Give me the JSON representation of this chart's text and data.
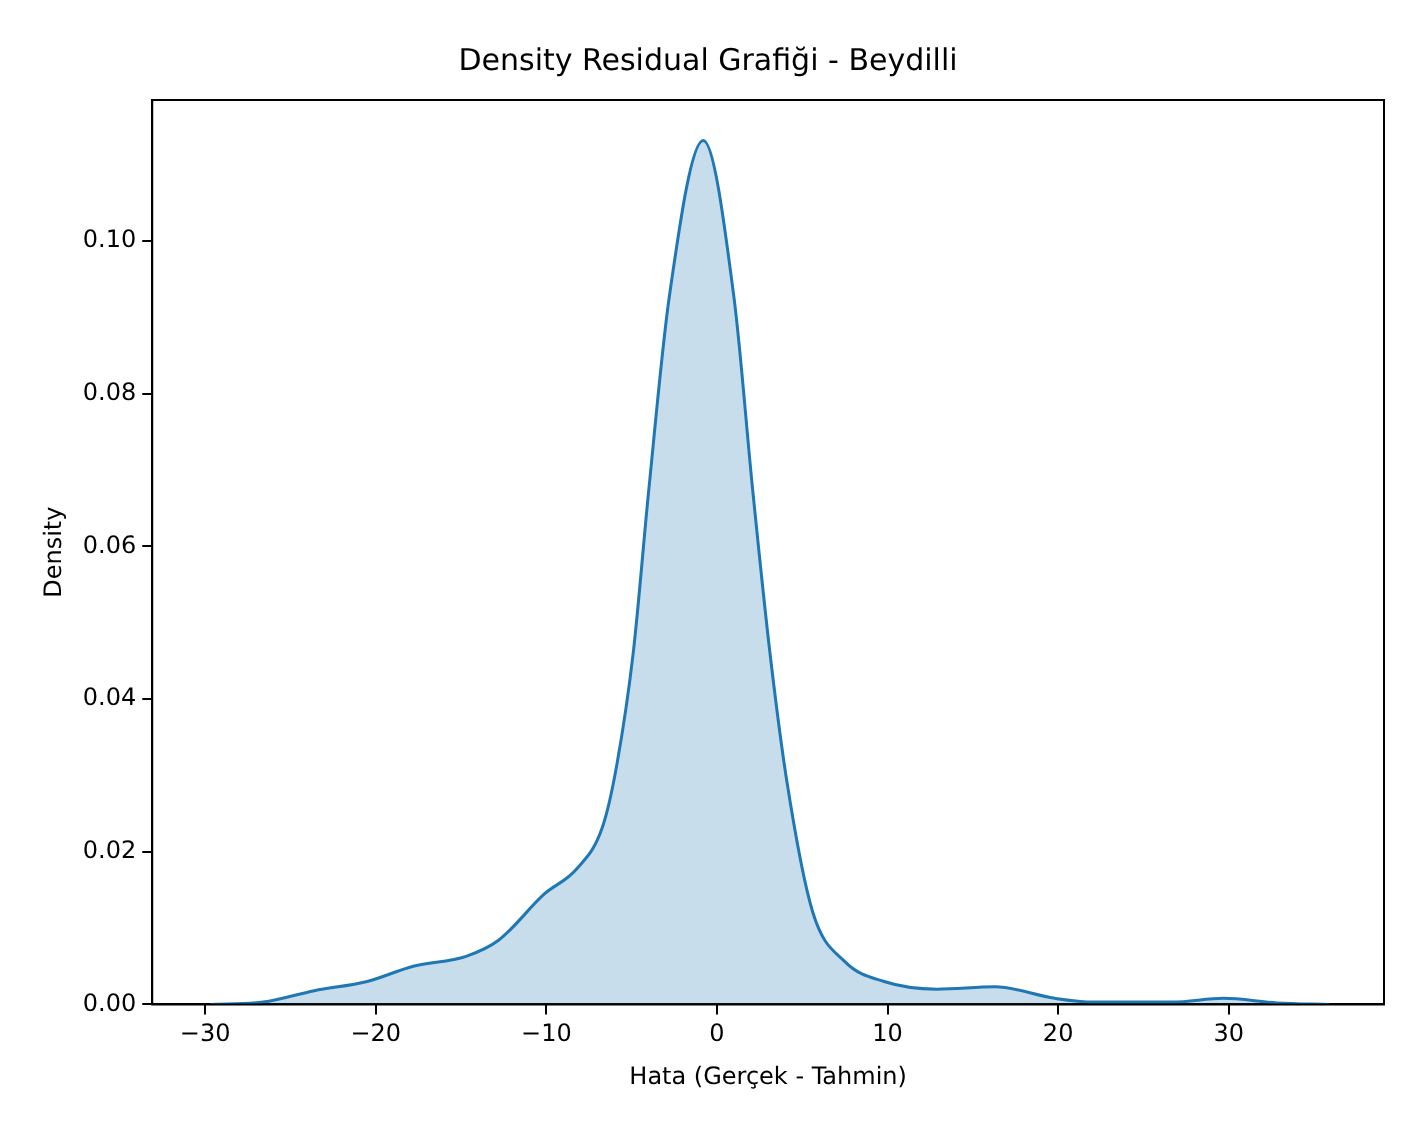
{
  "chart_data": {
    "type": "area",
    "title": "Density Residual Grafiği - Beydilli",
    "xlabel": "Hata (Gerçek - Tahmin)",
    "ylabel": "Density",
    "x": [
      -29.7,
      -26.6,
      -23.6,
      -20.5,
      -17.8,
      -14.7,
      -12.8,
      -10.1,
      -8.2,
      -6.7,
      -5.9,
      -4.9,
      -4.0,
      -2.8,
      -0.8,
      1.0,
      2.1,
      3.1,
      4.1,
      5.6,
      7.5,
      9.8,
      12.9,
      16.3,
      19.8,
      22.1,
      26.7,
      29.7,
      32.8,
      35.9
    ],
    "values": [
      0,
      0.0003,
      0.0018,
      0.003,
      0.005,
      0.0063,
      0.0084,
      0.0145,
      0.0178,
      0.0233,
      0.031,
      0.0462,
      0.0673,
      0.0926,
      0.1132,
      0.0926,
      0.0673,
      0.0462,
      0.0292,
      0.0122,
      0.0056,
      0.003,
      0.002,
      0.0023,
      0.0008,
      0.0003,
      0.0003,
      0.0008,
      0.0002,
      0
    ],
    "color": "#1f77b4",
    "xlim": [
      -33.1,
      39.1
    ],
    "xticks": [
      {
        "value": -30,
        "label": "−30"
      },
      {
        "value": -20,
        "label": "−20"
      },
      {
        "value": -10,
        "label": "−10"
      },
      0,
      10,
      20,
      30
    ],
    "ylim": [
      0,
      0.1185
    ],
    "yticks": [
      {
        "value": 0,
        "label": "0.00"
      },
      {
        "value": 0.02,
        "label": "0.02"
      },
      {
        "value": 0.04,
        "label": "0.04"
      },
      {
        "value": 0.06,
        "label": "0.06"
      },
      {
        "value": 0.08,
        "label": "0.08"
      },
      {
        "value": 0.1,
        "label": "0.10"
      }
    ],
    "grid": false,
    "legend": false
  }
}
